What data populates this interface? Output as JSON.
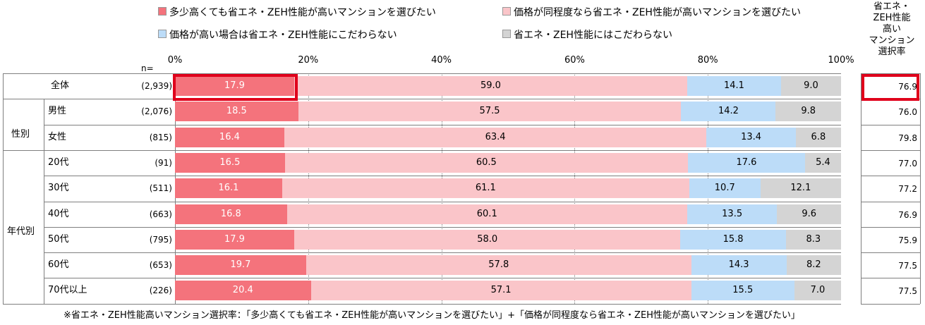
{
  "legend": [
    {
      "label": "多少高くても省エネ・ZEH性能が高いマンションを選びたい",
      "color": "#f4737c"
    },
    {
      "label": "価格が同程度なら省エネ・ZEH性能が高いマンションを選びたい",
      "color": "#fac5c9"
    },
    {
      "label": "価格が高い場合は省エネ・ZEH性能にこだわらない",
      "color": "#bcdcf8"
    },
    {
      "label": "省エネ・ZEH性能にはこだわらない",
      "color": "#d4d4d4"
    }
  ],
  "rate_header_lines": [
    "省エネ・",
    "ZEH性能",
    "高い",
    "マンション",
    "選択率"
  ],
  "n_label": "n=",
  "footnote": "※省エネ・ZEH性能高いマンション選択率：「多少高くても省エネ・ZEH性能が高いマンションを選びたい」+「価格が同程度なら省エネ・ZEH性能が高いマンションを選びたい」",
  "groups": [
    {
      "label": "性別"
    },
    {
      "label": "年代別"
    }
  ],
  "chart_data": {
    "type": "bar",
    "orientation": "horizontal",
    "stacked": true,
    "x_ticks": [
      "0%",
      "20%",
      "40%",
      "60%",
      "80%",
      "100%"
    ],
    "xlim": [
      0,
      100
    ],
    "series_names": [
      "多少高くても省エネ・ZEH性能が高いマンションを選びたい",
      "価格が同程度なら省エネ・ZEH性能が高いマンションを選びたい",
      "価格が高い場合は省エネ・ZEH性能にこだわらない",
      "省エネ・ZEH性能にはこだわらない"
    ],
    "rows": [
      {
        "label": "全体",
        "n": "(2,939)",
        "values": [
          17.9,
          59.0,
          14.1,
          9.0
        ],
        "rate": "76.9"
      },
      {
        "label": "男性",
        "n": "(2,076)",
        "values": [
          18.5,
          57.5,
          14.2,
          9.8
        ],
        "rate": "76.0"
      },
      {
        "label": "女性",
        "n": "(815)",
        "values": [
          16.4,
          63.4,
          13.4,
          6.8
        ],
        "rate": "79.8"
      },
      {
        "label": "20代",
        "n": "(91)",
        "values": [
          16.5,
          60.5,
          17.6,
          5.4
        ],
        "rate": "77.0"
      },
      {
        "label": "30代",
        "n": "(511)",
        "values": [
          16.1,
          61.1,
          10.7,
          12.1
        ],
        "rate": "77.2"
      },
      {
        "label": "40代",
        "n": "(663)",
        "values": [
          16.8,
          60.1,
          13.5,
          9.6
        ],
        "rate": "76.9"
      },
      {
        "label": "50代",
        "n": "(795)",
        "values": [
          17.9,
          58.0,
          15.8,
          8.3
        ],
        "rate": "75.9"
      },
      {
        "label": "60代",
        "n": "(653)",
        "values": [
          19.7,
          57.8,
          14.3,
          8.2
        ],
        "rate": "77.5"
      },
      {
        "label": "70代以上",
        "n": "(226)",
        "values": [
          20.4,
          57.1,
          15.5,
          7.0
        ],
        "rate": "77.5"
      }
    ]
  }
}
